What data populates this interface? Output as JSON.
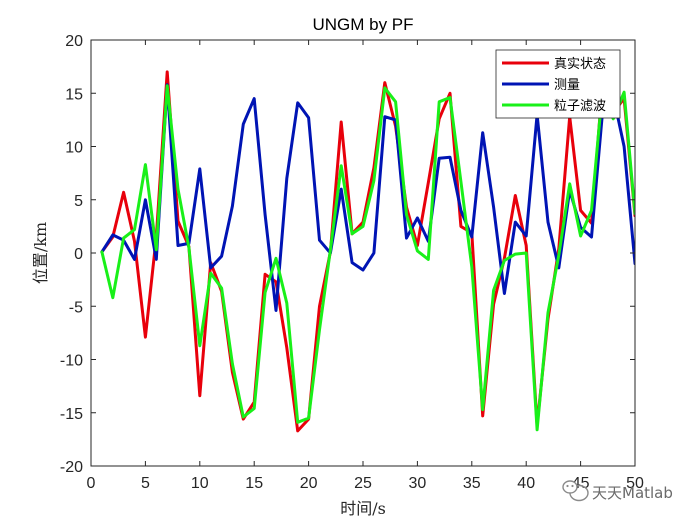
{
  "chart_data": {
    "type": "line",
    "title": "UNGM by PF",
    "xlabel": "时间/s",
    "ylabel": "位置/km",
    "xlim": [
      0,
      50
    ],
    "ylim": [
      -20,
      20
    ],
    "xticks": [
      "0",
      "5",
      "10",
      "15",
      "20",
      "25",
      "30",
      "35",
      "40",
      "45",
      "50"
    ],
    "yticks": [
      "-20",
      "-15",
      "-10",
      "-5",
      "0",
      "5",
      "10",
      "15",
      "20"
    ],
    "legend_position": "top-right",
    "grid": false,
    "x": [
      1,
      2,
      3,
      4,
      5,
      6,
      7,
      8,
      9,
      10,
      11,
      12,
      13,
      14,
      15,
      16,
      17,
      18,
      19,
      20,
      21,
      22,
      23,
      24,
      25,
      26,
      27,
      28,
      29,
      30,
      31,
      32,
      33,
      34,
      35,
      36,
      37,
      38,
      39,
      40,
      41,
      42,
      43,
      44,
      45,
      46,
      47,
      48,
      49,
      50
    ],
    "series": [
      {
        "name": "真实状态",
        "color": "#e8000b",
        "values": [
          0.1,
          1.5,
          5.7,
          1.1,
          -7.9,
          1.5,
          17.0,
          3.0,
          0.6,
          -13.4,
          -0.9,
          -3.6,
          -11.2,
          -15.6,
          -14.0,
          -2.0,
          -2.7,
          -8.9,
          -16.7,
          -15.6,
          -5.0,
          0.1,
          12.3,
          1.8,
          2.9,
          8.0,
          16.0,
          11.9,
          4.3,
          0.7,
          6.6,
          12.6,
          15.0,
          2.5,
          1.9,
          -15.3,
          -4.8,
          -0.5,
          5.4,
          0.7,
          -16.2,
          -6.2,
          0.4,
          12.8,
          4.0,
          2.8,
          15.8,
          13.2,
          14.5,
          3.5
        ]
      },
      {
        "name": "测量",
        "color": "#0014b4",
        "values": [
          0.1,
          1.7,
          1.2,
          -0.6,
          5.0,
          -0.6,
          15.8,
          0.7,
          0.9,
          7.9,
          -1.4,
          -0.3,
          4.4,
          12.1,
          14.5,
          3.6,
          -5.4,
          7.0,
          14.1,
          12.7,
          1.2,
          0.0,
          6.0,
          -0.9,
          -1.6,
          0.0,
          12.8,
          12.5,
          1.4,
          3.3,
          1.1,
          8.9,
          9.0,
          4.0,
          1.5,
          11.3,
          4.3,
          -3.8,
          2.9,
          1.6,
          13.0,
          2.9,
          -1.4,
          5.9,
          2.4,
          1.5,
          13.1,
          14.8,
          10.0,
          -1.0
        ]
      },
      {
        "name": "粒子滤波",
        "color": "#19f019",
        "values": [
          0.1,
          -4.2,
          1.4,
          2.2,
          8.3,
          0.3,
          15.7,
          6.0,
          0.5,
          -8.7,
          -1.9,
          -3.3,
          -10.4,
          -15.4,
          -14.6,
          -3.7,
          -0.5,
          -4.7,
          -15.9,
          -15.5,
          -7.2,
          0.3,
          8.2,
          1.8,
          2.5,
          6.8,
          15.5,
          14.2,
          3.6,
          0.2,
          -0.6,
          14.2,
          14.6,
          6.7,
          -1.3,
          -14.7,
          -3.5,
          -0.7,
          -0.1,
          0.0,
          -16.6,
          -5.6,
          -0.2,
          6.5,
          1.6,
          4.0,
          15.2,
          12.6,
          15.1,
          3.7
        ]
      }
    ]
  },
  "watermark": {
    "icon": "wechat-icon",
    "text": "天天Matlab"
  }
}
